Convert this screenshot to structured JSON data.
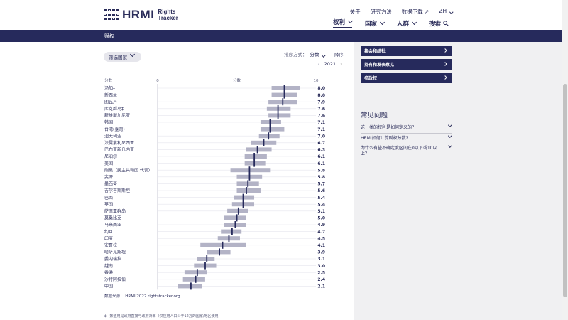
{
  "header": {
    "logo_text": "HRMI",
    "logo_sub_1": "Rights",
    "logo_sub_2": "Tracker",
    "top_links": [
      "关于",
      "研究方法",
      "数据下载"
    ],
    "language": "ZH",
    "main_nav": [
      "权利",
      "国家",
      "人群"
    ],
    "search_label": "搜索"
  },
  "breadcrumb": "赋权",
  "controls": {
    "filter_label": "筛选国家",
    "sort_label": "排序方式：",
    "sort_value": "分数",
    "sort_order": "降序",
    "year": "2021"
  },
  "sidebar": {
    "buttons": [
      "集会和结社",
      "持有和发表意见",
      "参政权"
    ],
    "faq_title": "常见问题",
    "faq_items": [
      "这一类的权利是如何定义的？",
      "HRMI如何计算赋权分数?",
      "为什么有些不确定度区间在0以下或10以上？"
    ]
  },
  "chart_data": {
    "type": "bar",
    "score_label": "分数",
    "xlim": [
      0,
      10
    ],
    "ticks": [
      "0",
      "分数",
      "10"
    ],
    "categories": [
      "汤加‡",
      "新西兰",
      "图瓦卢",
      "库克群岛‡",
      "新维斯加尼亚",
      "韩国",
      "台湾(臺灣)",
      "澳大利亚",
      "法属索利尼西亚",
      "巴布亚新几内亚",
      "尼泊尔",
      "美国",
      "刚果（民主共和国 代表）",
      "斐济",
      "墨西哥",
      "吉尔吉斯斯坦",
      "巴西",
      "英国",
      "萨摩亚群岛",
      "莫桑比克",
      "马来西亚",
      "约旦",
      "印度",
      "安哥拉",
      "哈萨克斯坦",
      "委内瑞拉",
      "越南",
      "香港",
      "沙特阿拉伯",
      "中国"
    ],
    "values": [
      8.0,
      8.0,
      7.9,
      7.6,
      7.6,
      7.1,
      7.1,
      7.0,
      6.7,
      6.3,
      6.1,
      6.1,
      5.8,
      5.8,
      5.7,
      5.6,
      5.4,
      5.4,
      5.1,
      5.0,
      4.9,
      4.7,
      4.5,
      4.1,
      3.9,
      3.1,
      3.0,
      2.5,
      2.4,
      2.1
    ],
    "value_labels": [
      "8.0",
      "8.0",
      "7.9",
      "7.6",
      "7.6",
      "7.1",
      "7.1",
      "7.0",
      "6.7",
      "6.3",
      "6.1",
      "6.1",
      "5.8",
      "5.8",
      "5.7",
      "5.6",
      "5.4",
      "5.4",
      "5.1",
      "5.0",
      "4.9",
      "4.7",
      "4.5",
      "4.1",
      "3.9",
      "3.1",
      "3.0",
      "2.5",
      "2.4",
      "2.1"
    ],
    "lower": [
      7.2,
      7.2,
      7.0,
      6.9,
      7.0,
      6.5,
      6.5,
      6.4,
      5.9,
      5.6,
      5.5,
      5.5,
      4.6,
      5.0,
      5.0,
      5.0,
      4.8,
      4.7,
      4.4,
      4.2,
      4.2,
      4.0,
      3.8,
      2.7,
      3.1,
      2.5,
      2.3,
      1.7,
      1.6,
      1.3
    ],
    "upper": [
      9.0,
      8.8,
      8.8,
      8.4,
      8.4,
      7.8,
      8.0,
      7.7,
      7.5,
      7.2,
      6.9,
      6.8,
      7.1,
      6.6,
      6.4,
      6.5,
      6.1,
      6.1,
      5.7,
      5.6,
      5.6,
      5.3,
      5.2,
      5.6,
      4.6,
      3.6,
      3.7,
      3.1,
      3.0,
      2.8
    ],
    "colors": {
      "band": "#b3b3c6",
      "marker": "#262a5c",
      "axis": "#c8c8d4"
    }
  },
  "source": "数据来源： HRMI 2022 rightstracker.org",
  "footnote": "‡—数值用是政府直接与政府对本（仅应用人口少于12万的国家/地区使用）"
}
